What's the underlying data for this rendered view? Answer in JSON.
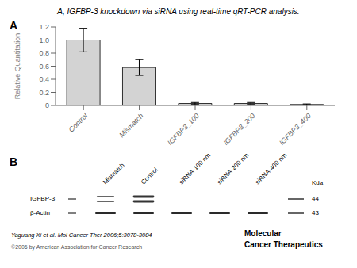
{
  "chart_data": {
    "type": "bar",
    "title": "A, IGFBP-3 knockdown via siRNA using real-time qRT-PCR analysis.",
    "y_label": "Relative Quantitation",
    "categories": [
      "Control",
      "Mismatch",
      "IGFBP3_100",
      "IGFBP3_200",
      "IGFBP3_400"
    ],
    "values": [
      1.0,
      0.58,
      0.03,
      0.03,
      0.015
    ],
    "errors": [
      0.18,
      0.12,
      0.015,
      0.015,
      0.008
    ],
    "color": "#d3d3d3",
    "ylim": [
      0,
      1.2
    ],
    "yticks": [
      0,
      0.2,
      0.4,
      0.6,
      0.8,
      {
        "value": 1.0,
        "label": "1.0"
      },
      1.2
    ],
    "annotations": [
      "A",
      "B",
      "Mismatch",
      "Control",
      "siRNA-100 nm",
      "siRNA-200 nm",
      "siRNA-400 nm",
      "Kda",
      "IGFBP-3",
      "β-Actin",
      "44",
      "43",
      "Yaguang Xi et al. Mol Cancer Ther 2006;5:3078-3084",
      "©2006 by American Association for Cancer Research",
      "Molecular",
      "Cancer Therapeutics"
    ]
  }
}
